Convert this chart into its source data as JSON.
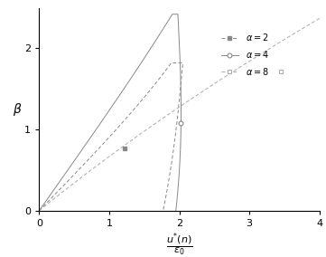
{
  "xlim": [
    0,
    4
  ],
  "ylim": [
    0,
    2.5
  ],
  "xticks": [
    0,
    1,
    2,
    3,
    4
  ],
  "yticks": [
    0,
    1,
    2
  ],
  "bg_color": "#ffffff",
  "col_dark": "#888888",
  "col_mid": "#999999",
  "col_light": "#aaaaaa",
  "ylabel": "β",
  "legend_alpha2": "α = 2",
  "legend_alpha4": "α = 4",
  "legend_alpha8": "α = 8",
  "marker_alpha2": [
    1.22,
    0.77
  ],
  "marker_alpha4": [
    2.02,
    1.08
  ],
  "marker_alpha8": [
    3.45,
    1.72
  ]
}
